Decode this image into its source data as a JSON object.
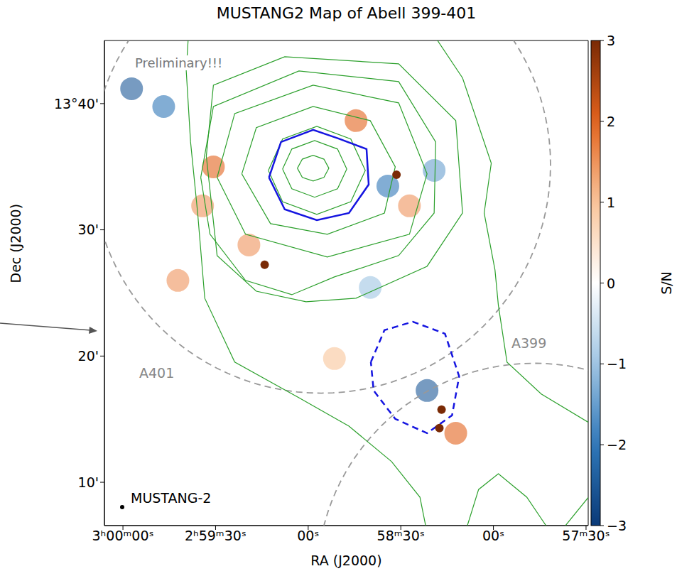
{
  "chart_data": {
    "type": "map",
    "title": "MUSTANG2 Map of Abell 399-401",
    "x_label": "RA (J2000)",
    "y_label": "Dec (J2000)",
    "xlim": [
      10806,
      10649.3
    ],
    "xticks": [
      {
        "value": 10800,
        "label": "3ʰ00ᵐ00ˢ"
      },
      {
        "value": 10770,
        "label": "2ʰ59ᵐ30ˢ"
      },
      {
        "value": 10740,
        "label": "00ˢ"
      },
      {
        "value": 10710,
        "label": "58ᵐ30ˢ"
      },
      {
        "value": 10680,
        "label": "00ˢ"
      },
      {
        "value": 10650,
        "label": "57ᵐ30ˢ"
      }
    ],
    "ylim": [
      6.57,
      45
    ],
    "yticks": [
      {
        "value": 10,
        "label": "10'"
      },
      {
        "value": 20,
        "label": "20'"
      },
      {
        "value": 30,
        "label": "30'"
      },
      {
        "value": 40,
        "label": "13°40'"
      }
    ],
    "annotations": [
      "Preliminary!!!",
      "MUSTANG-2"
    ],
    "circles": [
      {
        "name": "A401",
        "ra": 10735.8,
        "dec": 35.16,
        "ra_radius": 74.3,
        "dec_radius": 18.1,
        "color": "#999999",
        "line_style": "dashed"
      },
      {
        "name": "A399",
        "ra": 10666.8,
        "dec": 2.33,
        "ra_radius": 70.3,
        "dec_radius": 17.1,
        "color": "#999999",
        "line_style": "dashed"
      }
    ],
    "contours": {
      "color": "#2ca02c",
      "segments": [
        {
          "ra": [
            10743.5,
            10741.9,
            10738.4,
            10734.9,
            10733.3,
            10734.9,
            10738.4,
            10741.9,
            10743.5
          ],
          "dec": [
            34.88,
            35.6,
            35.9,
            35.6,
            34.88,
            34.15,
            33.87,
            34.15,
            34.88
          ]
        },
        {
          "ra": [
            10748.3,
            10745.3,
            10737.9,
            10730.5,
            10727.5,
            10730.5,
            10737.9,
            10745.3,
            10748.3
          ],
          "dec": [
            34.82,
            36.4,
            37.07,
            36.4,
            34.82,
            33.25,
            32.58,
            33.25,
            34.82
          ]
        },
        {
          "ra": [
            10752.9,
            10748.3,
            10737.2,
            10726.2,
            10721.5,
            10726.2,
            10737.2,
            10748.3,
            10752.9
          ],
          "dec": [
            34.71,
            37.19,
            38.2,
            37.19,
            34.71,
            32.23,
            31.22,
            32.23,
            34.71
          ]
        },
        {
          "ra": [
            10761.5,
            10756.8,
            10738.4,
            10719.9,
            10711.8,
            10715.3,
            10733.8,
            10752.2,
            10761.5
          ],
          "dec": [
            34.43,
            38.09,
            39.77,
            38.65,
            34.99,
            31.33,
            29.65,
            30.49,
            34.43
          ]
        },
        {
          "ra": [
            10769.5,
            10763.8,
            10738.4,
            10710.7,
            10701.5,
            10707.2,
            10733.8,
            10760.3,
            10769.5
          ],
          "dec": [
            34.15,
            39.21,
            41.46,
            40.06,
            34.43,
            29.65,
            27.85,
            29.65,
            34.15
          ]
        },
        {
          "ra": [
            10774.8,
            10770.7,
            10743.0,
            10710.7,
            10698.7,
            10699.2,
            10710.7,
            10731.5,
            10745.3,
            10760.3,
            10771.8,
            10774.8
          ],
          "dec": [
            34.15,
            39.77,
            42.59,
            41.74,
            36.96,
            31.33,
            27.96,
            26.27,
            24.86,
            25.99,
            29.65,
            34.15
          ]
        },
        {
          "ra": [
            10773.0,
            10770.7,
            10747.6,
            10710.7,
            10692.2,
            10690.0,
            10701.5,
            10724.5,
            10740.7,
            10756.8,
            10769.5,
            10773.0
          ],
          "dec": [
            35.84,
            41.46,
            43.71,
            43.15,
            38.65,
            31.33,
            27.11,
            24.58,
            24.3,
            25.14,
            27.96,
            35.84
          ]
        },
        {
          "ra": [
            10778.8,
            10779.5,
            10778.1,
            10775.8,
            10773.5,
            10763.8,
            10743.0,
            10726.8,
            10713.0,
            10703.8,
            10701.5
          ],
          "dec": [
            45.4,
            42.59,
            36.96,
            31.33,
            24.58,
            19.52,
            16.7,
            14.45,
            11.64,
            8.82,
            6.01
          ]
        },
        {
          "ra": [
            10699.2,
            10690.0,
            10680.7,
            10683.0,
            10679.5,
            10678.4,
            10675.6,
            10664.5,
            10647.2
          ],
          "dec": [
            45.4,
            42.03,
            35.27,
            31.33,
            26.83,
            24.02,
            19.52,
            16.99,
            14.45
          ]
        },
        {
          "ra": [
            10647.2,
            10657.6
          ],
          "dec": [
            9.43,
            6.29
          ]
        },
        {
          "ra": [
            10688.8,
            10684.8,
            10678.4,
            10669.2,
            10662.2
          ],
          "dec": [
            6.29,
            9.43,
            10.67,
            8.82,
            6.29
          ]
        }
      ]
    },
    "regions": [
      {
        "color": "#1515e0",
        "line_style": "solid",
        "ra": [
          10752.7,
          10748.8,
          10738.4,
          10730.3,
          10721.1,
          10720.4,
          10726.8,
          10737.2,
          10747.6,
          10752.7
        ],
        "dec": [
          34.15,
          36.96,
          37.92,
          37.24,
          36.4,
          33.59,
          31.33,
          30.77,
          31.62,
          34.15
        ]
      },
      {
        "color": "#1515e0",
        "line_style": "dashed",
        "ra": [
          10719.7,
          10715.3,
          10706.1,
          10695.7,
          10691.1,
          10693.4,
          10701.5,
          10711.8,
          10718.8,
          10719.7
        ],
        "dec": [
          19.52,
          22.05,
          22.72,
          21.77,
          18.39,
          15.3,
          13.89,
          15.02,
          17.27,
          19.52
        ]
      }
    ],
    "sources": {
      "ra": [
        10711.4,
        10754.1,
        10696.8,
        10697.5
      ],
      "dec": [
        34.37,
        27.23,
        15.75,
        14.29
      ],
      "snr": [
        3,
        3,
        3,
        3
      ]
    },
    "sn_patches": {
      "ra": [
        10797.2,
        10786.8,
        10770.7,
        10774.2,
        10724.5,
        10707.2,
        10699.2,
        10714.2,
        10701.5,
        10692.2,
        10759.2,
        10782.2,
        10719.9,
        10731.5
      ],
      "dec": [
        41.18,
        39.77,
        34.99,
        31.9,
        38.65,
        31.9,
        34.71,
        33.47,
        17.27,
        13.89,
        28.8,
        25.99,
        25.43,
        19.8
      ],
      "snr": [
        -2.5,
        -2,
        2,
        1.5,
        2,
        1.5,
        -1.5,
        -2,
        -2.5,
        2,
        1.5,
        1.5,
        -1,
        1
      ]
    },
    "colorbar": {
      "label": "S/N",
      "range": [
        -3,
        3
      ],
      "ticks": [
        {
          "value": -3,
          "label": "−3"
        },
        {
          "value": -2,
          "label": "−2"
        },
        {
          "value": -1,
          "label": "−1"
        },
        0,
        1,
        2,
        3
      ]
    }
  }
}
